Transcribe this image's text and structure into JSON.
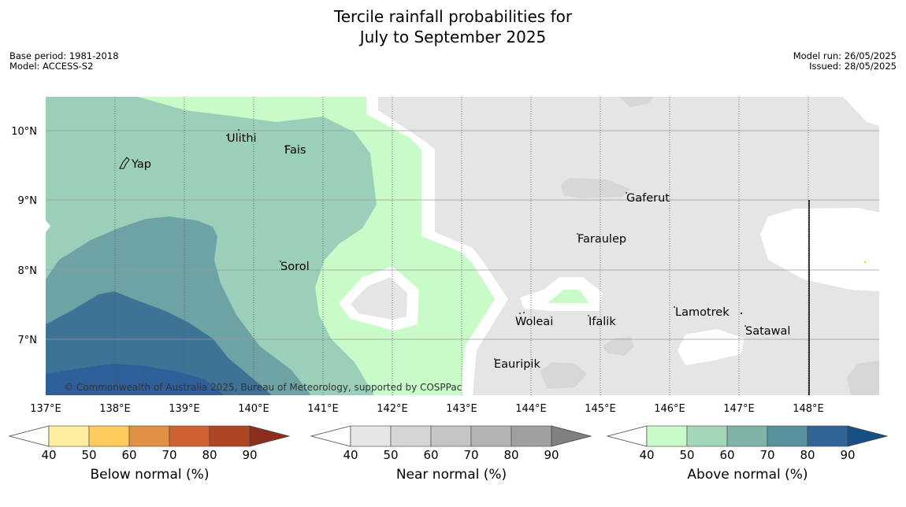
{
  "title": {
    "line1": "Tercile rainfall probabilities for",
    "line2": "July to September 2025"
  },
  "meta": {
    "base_period": "Base period: 1981-2018",
    "model": "Model: ACCESS-S2",
    "model_run": "Model run: 26/05/2025",
    "issued": "Issued: 28/05/2025"
  },
  "map": {
    "lat_ticks": [
      "10°N",
      "9°N",
      "8°N",
      "7°N"
    ],
    "lon_ticks": [
      "137°E",
      "138°E",
      "139°E",
      "140°E",
      "141°E",
      "142°E",
      "143°E",
      "144°E",
      "145°E",
      "146°E",
      "147°E",
      "148°E"
    ],
    "places": {
      "ulithi": "Ulithi",
      "fais": "Fais",
      "yap": "Yap",
      "gaferut": "Gaferut",
      "faraulep": "Faraulep",
      "sorol": "Sorol",
      "woleai": "Woleai",
      "ifalik": "Ifalik",
      "lamotrek": "Lamotrek",
      "satawal": "Satawal",
      "eauripik": "Eauripik"
    },
    "copyright": "© Commonwealth of Australia 2025, Bureau of Meteorology, supported by COSPPac"
  },
  "colorbars": {
    "below": {
      "label": "Below normal (%)",
      "ticks": [
        "40",
        "50",
        "60",
        "70",
        "80",
        "90"
      ],
      "colors": [
        "#ffeda0",
        "#fecb5c",
        "#e09142",
        "#cf6230",
        "#ae4624",
        "#8c2d1e"
      ]
    },
    "near": {
      "label": "Near normal (%)",
      "ticks": [
        "40",
        "50",
        "60",
        "70",
        "80",
        "90"
      ],
      "colors": [
        "#e6e6e6",
        "#d5d5d5",
        "#c5c5c5",
        "#b3b3b3",
        "#a0a0a0",
        "#808080"
      ]
    },
    "above": {
      "label": "Above normal (%)",
      "ticks": [
        "40",
        "50",
        "60",
        "70",
        "80",
        "90"
      ],
      "colors": [
        "#c9fbc9",
        "#a2d7b9",
        "#80b3a7",
        "#5a919f",
        "#336496",
        "#174e84"
      ]
    }
  }
}
